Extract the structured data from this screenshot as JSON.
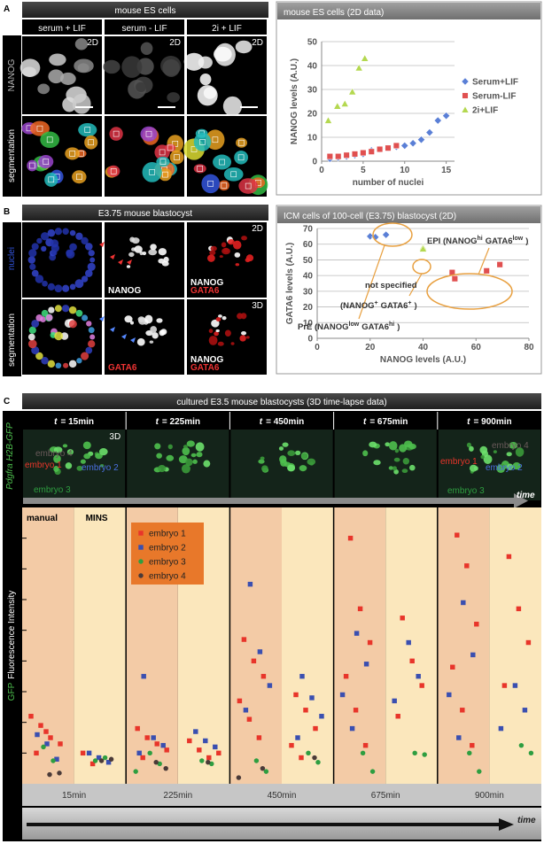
{
  "panels": {
    "a": {
      "label": "A",
      "header": "mouse ES cells",
      "columns": [
        "serum + LIF",
        "serum - LIF",
        "2i + LIF"
      ],
      "dim": "2D",
      "rows": [
        "NANOG",
        "segmentation"
      ]
    },
    "b": {
      "label": "B",
      "header": "E3.75 mouse blastocyst",
      "rows": [
        "nuclei",
        "segmentation"
      ],
      "dims": [
        "2D",
        "3D"
      ],
      "images": [
        [
          [],
          [
            "NANOG"
          ],
          [
            "NANOG",
            "GATA6"
          ]
        ],
        [
          [],
          [
            "GATA6"
          ],
          [
            "NANOG",
            "GATA6"
          ]
        ]
      ]
    },
    "c": {
      "label": "C",
      "header": "cultured E3.5 mouse blastocysts (3D time-lapse data)",
      "time_symbol": "t",
      "times": [
        "= 15min",
        "= 225min",
        "= 450min",
        "= 675min",
        "= 900min"
      ],
      "row_label": "Pdgfra H2B-GFP",
      "dim": "3D",
      "embryo_labels_first": [
        "embryo 4",
        "embryo 1",
        "embryo 2",
        "embryo 3"
      ],
      "embryo_labels_last": [
        "embryo 4",
        "embryo 1",
        "embryo 2",
        "embryo 3"
      ],
      "time_label": "time"
    }
  },
  "chart_data": [
    {
      "type": "scatter",
      "title": "mouse ES cells (2D data)",
      "x_label": "number of nuclei",
      "y_label": "NANOG levels (A.U.)",
      "xlim": [
        0,
        16
      ],
      "xticks": [
        0,
        5,
        10,
        15
      ],
      "ylim": [
        0,
        50
      ],
      "yticks": [
        0,
        10,
        20,
        30,
        40,
        50
      ],
      "grid": true,
      "legend": "right",
      "series": [
        {
          "name": "Serum+LIF",
          "color": "#5a7fd6",
          "marker": "diamond",
          "x": [
            1,
            2,
            3,
            4,
            5,
            6,
            7,
            8,
            9,
            10,
            11,
            12,
            13,
            14,
            15
          ],
          "values": [
            1,
            1.5,
            2,
            2.5,
            3,
            4.5,
            5,
            5.5,
            6,
            6.5,
            7.5,
            9,
            12,
            17,
            19
          ]
        },
        {
          "name": "Serum-LIF",
          "color": "#e05050",
          "marker": "square",
          "x": [
            1,
            2,
            3,
            4,
            5,
            6,
            7,
            8,
            9
          ],
          "values": [
            2,
            2,
            2.5,
            3,
            3.5,
            4,
            5,
            5.5,
            6.5
          ]
        },
        {
          "name": "2i+LIF",
          "color": "#b4d850",
          "marker": "triangle",
          "x": [
            0.8,
            1.9,
            2.8,
            3.7,
            4.5,
            5.2
          ],
          "values": [
            17,
            23,
            24,
            29,
            39,
            43
          ]
        }
      ]
    },
    {
      "type": "scatter",
      "title": "ICM cells of 100-cell (E3.75) blastocyst (2D)",
      "x_label": "NANOG levels (A.U.)",
      "y_label": "GATA6 levels (A.U.)",
      "xlim": [
        0,
        80
      ],
      "xticks": [
        0,
        20,
        40,
        60,
        80
      ],
      "ylim": [
        0,
        70
      ],
      "yticks": [
        0,
        10,
        20,
        30,
        40,
        50,
        60,
        70
      ],
      "grid": true,
      "series": [
        {
          "color": "#5a7fd6",
          "marker": "diamond",
          "x": [
            20,
            22,
            26
          ],
          "values": [
            65,
            64.5,
            66
          ]
        },
        {
          "color": "#b4d850",
          "marker": "triangle",
          "x": [
            40,
            40
          ],
          "values": [
            58,
            57
          ]
        },
        {
          "color": "#e05050",
          "marker": "square",
          "x": [
            51,
            52,
            64,
            69
          ],
          "values": [
            42,
            38,
            43,
            47
          ]
        }
      ],
      "annotations": [
        {
          "parts": [
            "EPI (NANOG",
            "hi",
            "GATA6",
            "low",
            ")"
          ]
        },
        {
          "parts": [
            "not specified"
          ]
        },
        {
          "parts": [
            "(NANOG",
            "+",
            "GATA6",
            "+",
            ")"
          ]
        },
        {
          "parts": [
            "PrE (NANOG",
            "low",
            "GATA6",
            "hi",
            ")"
          ]
        }
      ]
    },
    {
      "type": "strip",
      "y_label_parts": [
        "GFP",
        "Fluorescence Intensity"
      ],
      "categories": [
        "15min",
        "225min",
        "450min",
        "675min",
        "900min"
      ],
      "groups": [
        "manual",
        "MINS"
      ],
      "ylim": [
        0,
        9
      ],
      "yticks": [
        1,
        2,
        3,
        4,
        5,
        6,
        7,
        8
      ],
      "time_label": "time",
      "series": [
        {
          "name": "embryo 1",
          "color": "#e8352a",
          "marker": "square",
          "values": [
            [
              [
                2.2,
                1.9,
                1.5,
                1.3,
                1.0,
                1.7
              ],
              [
                1.0,
                0.65
              ]
            ],
            [
              [
                1.8,
                1.5,
                1.3,
                1.1,
                0.85
              ],
              [
                1.4,
                1.1,
                0.85,
                1.0
              ]
            ],
            [
              [
                4.7,
                4.0,
                3.5,
                2.7,
                2.1,
                1.5
              ],
              [
                2.9,
                2.4,
                1.8,
                1.25,
                0.85
              ]
            ],
            [
              [
                8.0,
                5.7,
                4.6,
                3.5,
                2.4,
                1.25
              ],
              [
                5.4,
                4.0,
                3.2,
                2.2
              ]
            ],
            [
              [
                8.1,
                7.1,
                5.2,
                3.8,
                2.4,
                1.25
              ],
              [
                7.4,
                5.7,
                4.6,
                3.2
              ]
            ]
          ]
        },
        {
          "name": "embryo 2",
          "color": "#3a4fb0",
          "marker": "square",
          "values": [
            [
              [
                1.6,
                1.3,
                0.8
              ],
              [
                1.0,
                0.85,
                0.7
              ]
            ],
            [
              [
                3.5,
                1.5,
                1.25,
                1.0
              ],
              [
                1.7,
                1.4,
                1.2
              ]
            ],
            [
              [
                6.5,
                4.3,
                3.2,
                2.4
              ],
              [
                3.5,
                2.8,
                2.2,
                1.5
              ]
            ],
            [
              [
                4.9,
                3.9,
                2.9,
                1.8
              ],
              [
                4.6,
                3.5,
                2.7
              ]
            ],
            [
              [
                5.9,
                4.2,
                2.9,
                1.5
              ],
              [
                3.2,
                2.4,
                1.8
              ]
            ]
          ]
        },
        {
          "name": "embryo 3",
          "color": "#2e9e40",
          "marker": "circle",
          "values": [
            [
              [
                1.2,
                0.75
              ],
              [
                0.75,
                0.85
              ]
            ],
            [
              [
                1.0,
                0.65,
                0.4
              ],
              [
                0.75,
                0.65
              ]
            ],
            [
              [
                0.75,
                0.4
              ],
              [
                1.0,
                0.7
              ]
            ],
            [
              [
                1.0,
                0.4
              ],
              [
                1.0,
                0.95
              ]
            ],
            [
              [
                1.0,
                0.4
              ],
              [
                1.25,
                1.0
              ]
            ]
          ]
        },
        {
          "name": "embryo 4",
          "color": "#4a3a38",
          "marker": "circle",
          "values": [
            [
              [
                0.3,
                0.35
              ],
              [
                0.75,
                0.8
              ]
            ],
            [
              [
                0.7,
                0.5
              ],
              [
                0.7
              ]
            ],
            [
              [
                0.5,
                0.2
              ],
              [
                0.85
              ]
            ],
            [
              [],
              []
            ],
            [
              [],
              []
            ]
          ]
        }
      ]
    }
  ]
}
